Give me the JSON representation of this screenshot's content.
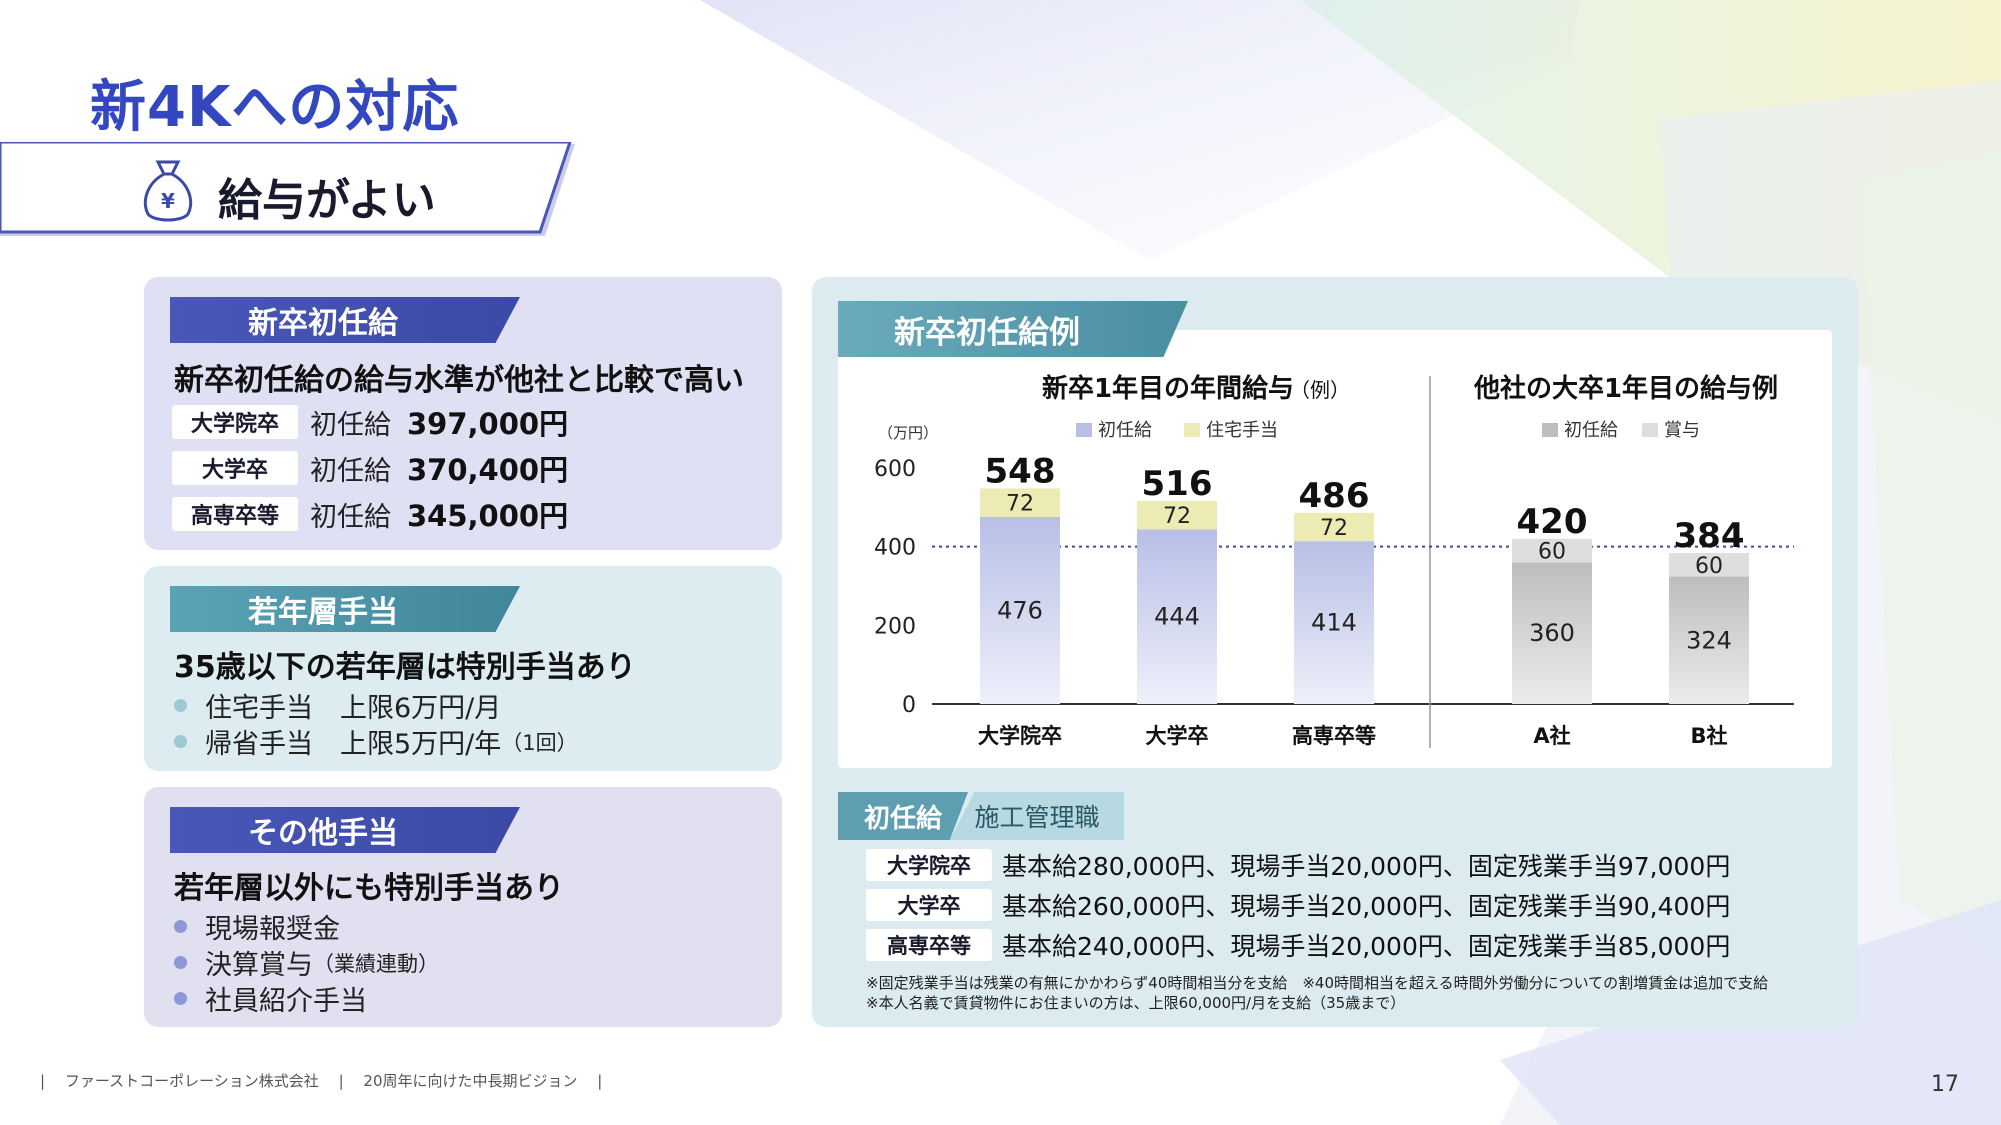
{
  "page_title": "新4Kへの対応",
  "section_banner": "給与がよい",
  "card_starting_pay": {
    "tag": "新卒初任給",
    "headline": "新卒初任給の給与水準が他社と比較で高い",
    "rows": [
      {
        "level": "大学院卒",
        "label": "初任給",
        "value": "397,000円"
      },
      {
        "level": "大学卒",
        "label": "初任給",
        "value": "370,400円"
      },
      {
        "level": "高専卒等",
        "label": "初任給",
        "value": "345,000円"
      }
    ]
  },
  "card_youth": {
    "tag": "若年層手当",
    "headline": "35歳以下の若年層は特別手当あり",
    "items": [
      {
        "text": "住宅手当　上限6万円/月",
        "note": ""
      },
      {
        "text": "帰省手当　上限5万円/年",
        "note": "（1回）"
      }
    ]
  },
  "card_other": {
    "tag": "その他手当",
    "headline": "若年層以外にも特別手当あり",
    "items": [
      {
        "text": "現場報奨金",
        "note": ""
      },
      {
        "text": "決算賞与",
        "note": "（業績連動）"
      },
      {
        "text": "社員紹介手当",
        "note": ""
      }
    ]
  },
  "chart_tag": "新卒初任給例",
  "chart_data": [
    {
      "type": "bar",
      "stacked": true,
      "title": "新卒1年目の年間給与",
      "title_note": "（例）",
      "ylabel": "（万円）",
      "ylim": [
        0,
        600
      ],
      "yticks": [
        0,
        200,
        400,
        600
      ],
      "grid": false,
      "legend_placement": "top",
      "reference_line": 400,
      "categories": [
        "大学院卒",
        "大学卒",
        "高専卒等"
      ],
      "series": [
        {
          "name": "初任給",
          "values": [
            476,
            444,
            414
          ],
          "color": "#b8bfe6"
        },
        {
          "name": "住宅手当",
          "values": [
            72,
            72,
            72
          ],
          "color": "#ecebb3"
        }
      ],
      "totals": [
        548,
        516,
        486
      ]
    },
    {
      "type": "bar",
      "stacked": true,
      "title": "他社の大卒1年目の給与例",
      "ylim": [
        0,
        600
      ],
      "legend_placement": "top",
      "categories": [
        "A社",
        "B社"
      ],
      "series": [
        {
          "name": "初任給",
          "values": [
            360,
            324
          ],
          "color": "#bdbdbd"
        },
        {
          "name": "賞与",
          "values": [
            60,
            60
          ],
          "color": "#dedede"
        }
      ],
      "totals": [
        420,
        384
      ]
    }
  ],
  "initial_pay_tag": {
    "a": "初任給",
    "b": "施工管理職"
  },
  "details": [
    {
      "level": "大学院卒",
      "text": "基本給280,000円、現場手当20,000円、固定残業手当97,000円"
    },
    {
      "level": "大学卒",
      "text": "基本給260,000円、現場手当20,000円、固定残業手当90,400円"
    },
    {
      "level": "高専卒等",
      "text": "基本給240,000円、現場手当20,000円、固定残業手当85,000円"
    }
  ],
  "notes": [
    "※固定残業手当は残業の有無にかかわらず40時間相当分を支給　※40時間相当を超える時間外労働分についての割増賃金は追加で支給",
    "※本人名義で賃貸物件にお住まいの方は、上限60,000円/月を支給（35歳まで）"
  ],
  "footer": {
    "company": "ファーストコーポレーション株式会社",
    "doc": "20周年に向けた中長期ビジョン"
  },
  "page_number": "17",
  "colors": {
    "title": "#3347c0",
    "accent_blue": "#3a4aa5",
    "accent_teal": "#4a8ea2"
  }
}
